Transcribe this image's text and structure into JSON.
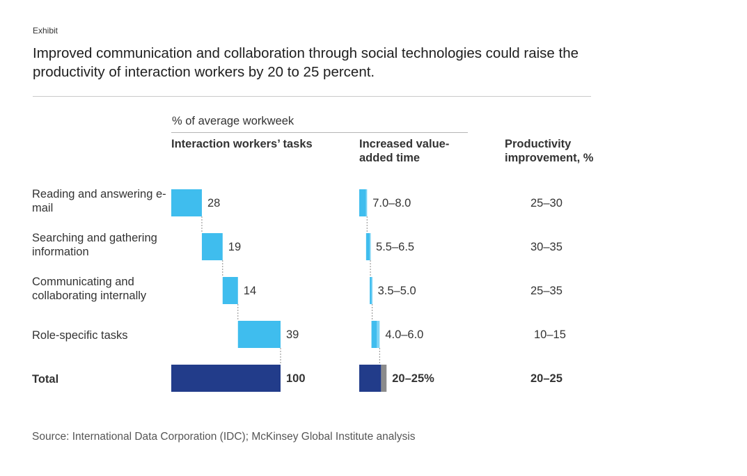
{
  "exhibit_label": "Exhibit",
  "title": "Improved communication and collaboration through social technologies could raise the productivity of interaction workers by 20 to 25 percent.",
  "unit_label": "% of average workweek",
  "source": "Source: International Data Corporation (IDC); McKinsey Global Institute analysis",
  "colors": {
    "light_blue": "#3FBDEE",
    "navy": "#223C8A",
    "gray": "#8B8B8B",
    "connector": "#8B8B8B"
  },
  "chart_data": [
    {
      "type": "bar",
      "subtype": "waterfall",
      "title": "Interaction workers’ tasks",
      "categories": [
        "Reading and answering e-mail",
        "Searching and gathering information",
        "Communicating and collaborating internally",
        "Role-specific tasks",
        "Total"
      ],
      "values": [
        28,
        19,
        14,
        39,
        100
      ],
      "labels": [
        "28",
        "19",
        "14",
        "39",
        "100"
      ],
      "xlim": [
        0,
        100
      ]
    },
    {
      "type": "bar",
      "subtype": "range",
      "title": "Increased value-added time",
      "categories": [
        "Reading and answering e-mail",
        "Searching and gathering information",
        "Communicating and collaborating internally",
        "Role-specific tasks",
        "Total"
      ],
      "low": [
        7.0,
        5.5,
        3.5,
        4.0,
        20
      ],
      "high": [
        8.0,
        6.5,
        5.0,
        6.0,
        25
      ],
      "labels": [
        "7.0–8.0",
        "5.5–6.5",
        "3.5–5.0",
        "4.0–6.0",
        "20–25%"
      ]
    },
    {
      "type": "table",
      "title": "Productivity improvement, %",
      "categories": [
        "Reading and answering e-mail",
        "Searching and gathering information",
        "Communicating and collaborating internally",
        "Role-specific tasks",
        "Total"
      ],
      "values": [
        "25–30",
        "30–35",
        "25–35",
        "10–15",
        "20–25"
      ]
    }
  ],
  "column_headers": {
    "tasks": "Interaction workers’ tasks",
    "value_added": "Increased value-added time",
    "productivity": "Productivity improvement, %"
  },
  "rows": [
    {
      "label": "Reading and answering e-mail",
      "task_value": "28",
      "value_added": "7.0–8.0",
      "productivity": "25–30"
    },
    {
      "label": "Searching and gathering information",
      "task_value": "19",
      "value_added": "5.5–6.5",
      "productivity": "30–35"
    },
    {
      "label": "Communicating and collaborating internally",
      "task_value": "14",
      "value_added": "3.5–5.0",
      "productivity": "25–35"
    },
    {
      "label": "Role-specific tasks",
      "task_value": "39",
      "value_added": "4.0–6.0",
      "productivity": "10–15"
    },
    {
      "label": "Total",
      "task_value": "100",
      "value_added": "20–25%",
      "productivity": "20–25"
    }
  ]
}
